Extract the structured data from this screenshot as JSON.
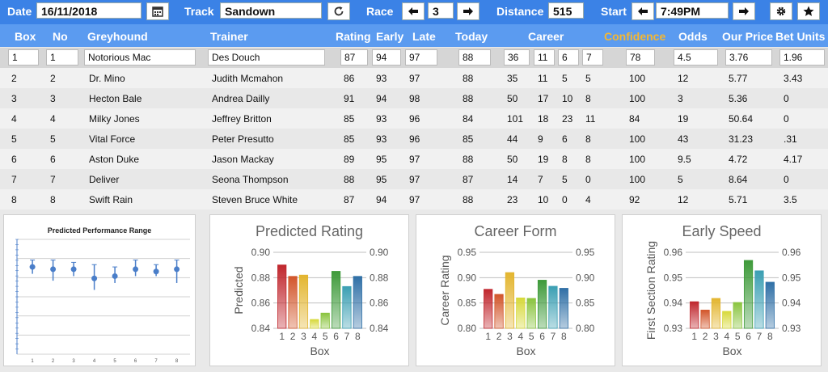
{
  "toolbar": {
    "date_label": "Date",
    "date_value": "16/11/2018",
    "calendar_icon": "calendar-icon",
    "track_label": "Track",
    "track_value": "Sandown",
    "refresh_icon": "refresh-icon",
    "race_label": "Race",
    "race_value": "3",
    "distance_label": "Distance",
    "distance_value": "515",
    "start_label": "Start",
    "start_value": "7:49PM",
    "prev_glyph": "🡄",
    "next_glyph": "🡆",
    "settings_icon": "gear-icon",
    "favorite_icon": "star-icon"
  },
  "colors": {
    "toolbar": "#3b82e6",
    "header": "#5b9bf0",
    "confidence": "#f5b731"
  },
  "table": {
    "headers": {
      "box": "Box",
      "no": "No",
      "greyhound": "Greyhound",
      "trainer": "Trainer",
      "rating": "Rating",
      "early": "Early",
      "late": "Late",
      "today": "Today",
      "career": "Career",
      "confidence": "Confidence",
      "odds": "Odds",
      "our_price": "Our Price",
      "bet_units": "Bet Units"
    },
    "rows": [
      {
        "box": "1",
        "no": "1",
        "greyhound": "Notorious Mac",
        "trainer": "Des Douch",
        "rating": "87",
        "early": "94",
        "late": "97",
        "today": "88",
        "c1": "36",
        "c2": "11",
        "c3": "6",
        "c4": "7",
        "confidence": "78",
        "odds": "4.5",
        "our_price": "3.76",
        "bet_units": "1.96"
      },
      {
        "box": "2",
        "no": "2",
        "greyhound": "Dr. Mino",
        "trainer": "Judith Mcmahon",
        "rating": "86",
        "early": "93",
        "late": "97",
        "today": "88",
        "c1": "35",
        "c2": "11",
        "c3": "5",
        "c4": "5",
        "confidence": "100",
        "odds": "12",
        "our_price": "5.77",
        "bet_units": "3.43"
      },
      {
        "box": "3",
        "no": "3",
        "greyhound": "Hecton Bale",
        "trainer": "Andrea Dailly",
        "rating": "91",
        "early": "94",
        "late": "98",
        "today": "88",
        "c1": "50",
        "c2": "17",
        "c3": "10",
        "c4": "8",
        "confidence": "100",
        "odds": "3",
        "our_price": "5.36",
        "bet_units": "0"
      },
      {
        "box": "4",
        "no": "4",
        "greyhound": "Milky Jones",
        "trainer": "Jeffrey Britton",
        "rating": "85",
        "early": "93",
        "late": "96",
        "today": "84",
        "c1": "101",
        "c2": "18",
        "c3": "23",
        "c4": "11",
        "confidence": "84",
        "odds": "19",
        "our_price": "50.64",
        "bet_units": "0"
      },
      {
        "box": "5",
        "no": "5",
        "greyhound": "Vital Force",
        "trainer": "Peter Presutto",
        "rating": "85",
        "early": "93",
        "late": "96",
        "today": "85",
        "c1": "44",
        "c2": "9",
        "c3": "6",
        "c4": "8",
        "confidence": "100",
        "odds": "43",
        "our_price": "31.23",
        "bet_units": ".31"
      },
      {
        "box": "6",
        "no": "6",
        "greyhound": "Aston Duke",
        "trainer": "Jason Mackay",
        "rating": "89",
        "early": "95",
        "late": "97",
        "today": "88",
        "c1": "50",
        "c2": "19",
        "c3": "8",
        "c4": "8",
        "confidence": "100",
        "odds": "9.5",
        "our_price": "4.72",
        "bet_units": "4.17"
      },
      {
        "box": "7",
        "no": "7",
        "greyhound": "Deliver",
        "trainer": "Seona Thompson",
        "rating": "88",
        "early": "95",
        "late": "97",
        "today": "87",
        "c1": "14",
        "c2": "7",
        "c3": "5",
        "c4": "0",
        "confidence": "100",
        "odds": "5",
        "our_price": "8.64",
        "bet_units": "0"
      },
      {
        "box": "8",
        "no": "8",
        "greyhound": "Swift Rain",
        "trainer": "Steven Bruce White",
        "rating": "87",
        "early": "94",
        "late": "97",
        "today": "88",
        "c1": "23",
        "c2": "10",
        "c3": "0",
        "c4": "4",
        "confidence": "92",
        "odds": "12",
        "our_price": "5.71",
        "bet_units": "3.5"
      }
    ]
  },
  "chart_data": [
    {
      "type": "scatter",
      "title": "Predicted Performance Range",
      "x": [
        1,
        2,
        3,
        4,
        5,
        6,
        7,
        8
      ],
      "y": [
        0.88,
        0.87,
        0.87,
        0.83,
        0.84,
        0.87,
        0.86,
        0.87
      ],
      "error_low": [
        0.85,
        0.82,
        0.84,
        0.78,
        0.81,
        0.84,
        0.84,
        0.81
      ],
      "error_high": [
        0.91,
        0.91,
        0.9,
        0.89,
        0.88,
        0.91,
        0.89,
        0.91
      ],
      "ylim": [
        0.5,
        1.0
      ],
      "color": "#4a7ec9"
    },
    {
      "type": "bar",
      "title": "Predicted Rating",
      "xlabel": "Box",
      "ylabel": "Predicted",
      "categories": [
        "1",
        "2",
        "3",
        "4",
        "5",
        "6",
        "7",
        "8"
      ],
      "values": [
        0.89,
        0.881,
        0.882,
        0.847,
        0.852,
        0.885,
        0.873,
        0.881
      ],
      "ylim": [
        0.84,
        0.9
      ],
      "yticks": [
        "0.90",
        "0.88",
        "0.86",
        "0.84"
      ]
    },
    {
      "type": "bar",
      "title": "Career Form",
      "xlabel": "Box",
      "ylabel": "Career Rating",
      "categories": [
        "1",
        "2",
        "3",
        "4",
        "5",
        "6",
        "7",
        "8"
      ],
      "values": [
        0.877,
        0.867,
        0.91,
        0.86,
        0.859,
        0.895,
        0.883,
        0.879
      ],
      "ylim": [
        0.8,
        0.95
      ],
      "yticks": [
        "0.95",
        "0.90",
        "0.85",
        "0.80"
      ]
    },
    {
      "type": "bar",
      "title": "Early Speed",
      "xlabel": "Box",
      "ylabel": "First Section Rating",
      "categories": [
        "1",
        "2",
        "3",
        "4",
        "5",
        "6",
        "7",
        "8"
      ],
      "values": [
        0.9405,
        0.9372,
        0.9418,
        0.9367,
        0.9402,
        0.9568,
        0.9527,
        0.9482
      ],
      "ylim": [
        0.93,
        0.96
      ],
      "yticks": [
        "0.96",
        "0.95",
        "0.94",
        "0.93"
      ]
    }
  ],
  "bar_colors": [
    "#c0262d",
    "#d2552a",
    "#e3b52f",
    "#d7d93a",
    "#8ac43f",
    "#3e9a3a",
    "#3b9fb3",
    "#2f6fa6"
  ]
}
